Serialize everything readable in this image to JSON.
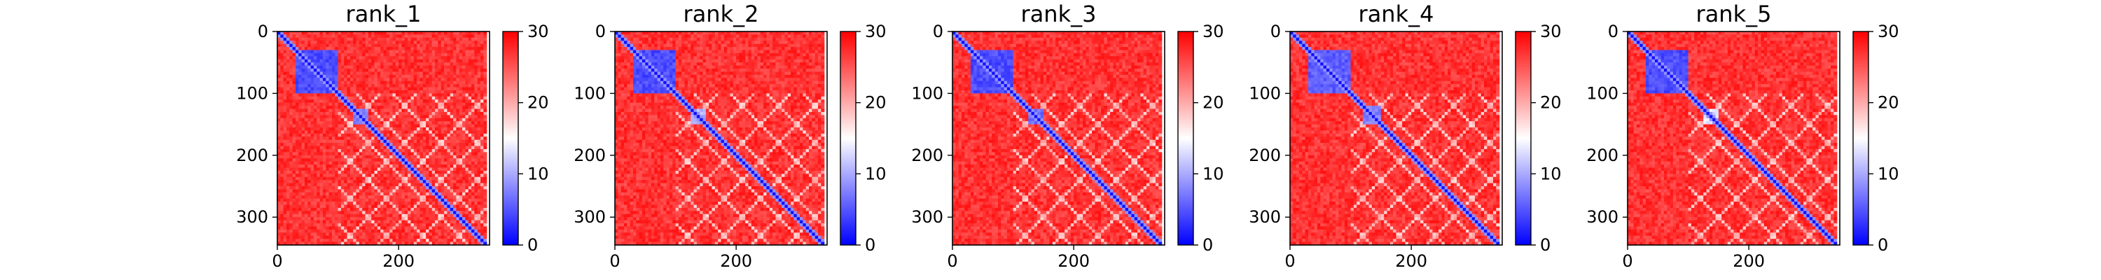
{
  "chart_data": [
    {
      "type": "heatmap",
      "title": "rank_1",
      "xlabel": "",
      "ylabel": "",
      "xlim": [
        0,
        350
      ],
      "ylim": [
        345,
        0
      ],
      "xticks": [
        0,
        200
      ],
      "yticks": [
        0,
        100,
        200,
        300
      ],
      "colorbar": {
        "range": [
          0,
          30
        ],
        "ticks": [
          0,
          10,
          20,
          30
        ]
      },
      "colormap": [
        "#0000ff",
        "#ffffff",
        "#ff0000"
      ],
      "n_residues": 345,
      "low_error_blocks": [
        {
          "start": 28,
          "end": 98,
          "value": 3
        },
        {
          "start": 123,
          "end": 150,
          "value": 6
        }
      ],
      "diagonal_value": 1,
      "background_value": 29
    },
    {
      "type": "heatmap",
      "title": "rank_2",
      "xlabel": "",
      "ylabel": "",
      "xlim": [
        0,
        350
      ],
      "ylim": [
        345,
        0
      ],
      "xticks": [
        0,
        200
      ],
      "yticks": [
        0,
        100,
        200,
        300
      ],
      "colorbar": {
        "range": [
          0,
          30
        ],
        "ticks": [
          0,
          10,
          20,
          30
        ]
      },
      "colormap": [
        "#0000ff",
        "#ffffff",
        "#ff0000"
      ],
      "n_residues": 345,
      "low_error_blocks": [
        {
          "start": 28,
          "end": 98,
          "value": 3
        },
        {
          "start": 123,
          "end": 150,
          "value": 9
        }
      ],
      "diagonal_value": 1,
      "background_value": 29
    },
    {
      "type": "heatmap",
      "title": "rank_3",
      "xlabel": "",
      "ylabel": "",
      "xlim": [
        0,
        350
      ],
      "ylim": [
        345,
        0
      ],
      "xticks": [
        0,
        200
      ],
      "yticks": [
        0,
        100,
        200,
        300
      ],
      "colorbar": {
        "range": [
          0,
          30
        ],
        "ticks": [
          0,
          10,
          20,
          30
        ]
      },
      "colormap": [
        "#0000ff",
        "#ffffff",
        "#ff0000"
      ],
      "n_residues": 345,
      "low_error_blocks": [
        {
          "start": 28,
          "end": 98,
          "value": 3
        },
        {
          "start": 123,
          "end": 150,
          "value": 5
        }
      ],
      "diagonal_value": 1,
      "background_value": 29
    },
    {
      "type": "heatmap",
      "title": "rank_4",
      "xlabel": "",
      "ylabel": "",
      "xlim": [
        0,
        350
      ],
      "ylim": [
        345,
        0
      ],
      "xticks": [
        0,
        200
      ],
      "yticks": [
        0,
        100,
        200,
        300
      ],
      "colorbar": {
        "range": [
          0,
          30
        ],
        "ticks": [
          0,
          10,
          20,
          30
        ]
      },
      "colormap": [
        "#0000ff",
        "#ffffff",
        "#ff0000"
      ],
      "n_residues": 345,
      "low_error_blocks": [
        {
          "start": 28,
          "end": 98,
          "value": 4
        },
        {
          "start": 118,
          "end": 150,
          "value": 6
        }
      ],
      "diagonal_value": 1,
      "background_value": 29
    },
    {
      "type": "heatmap",
      "title": "rank_5",
      "xlabel": "",
      "ylabel": "",
      "xlim": [
        0,
        350
      ],
      "ylim": [
        345,
        0
      ],
      "xticks": [
        0,
        200
      ],
      "yticks": [
        0,
        100,
        200,
        300
      ],
      "colorbar": {
        "range": [
          0,
          30
        ],
        "ticks": [
          0,
          10,
          20,
          30
        ]
      },
      "colormap": [
        "#0000ff",
        "#ffffff",
        "#ff0000"
      ],
      "n_residues": 345,
      "low_error_blocks": [
        {
          "start": 28,
          "end": 98,
          "value": 3
        },
        {
          "start": 123,
          "end": 150,
          "value": 12
        }
      ],
      "diagonal_value": 1,
      "background_value": 29
    }
  ]
}
